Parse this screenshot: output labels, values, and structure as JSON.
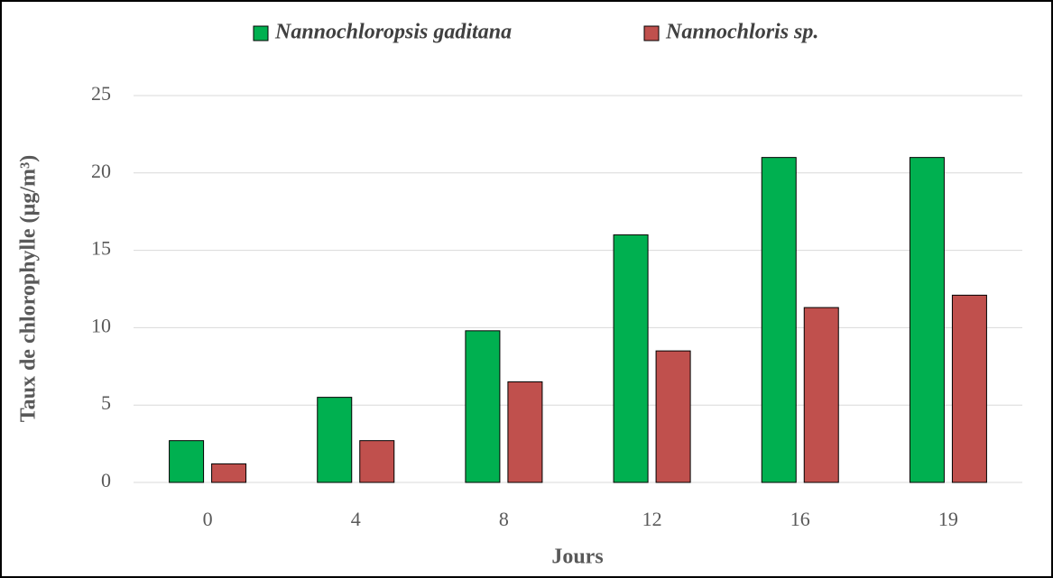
{
  "chart_data": {
    "type": "bar",
    "xlabel": "Jours",
    "ylabel": "Taux de chlorophylle (µg/m³)",
    "categories": [
      "0",
      "4",
      "8",
      "12",
      "16",
      "19"
    ],
    "series": [
      {
        "name": "Nannochloropsis gaditana",
        "color": "#00b050",
        "values": [
          2.7,
          5.5,
          9.8,
          16.0,
          21.0,
          21.0
        ]
      },
      {
        "name": "Nannochloris sp.",
        "color": "#c0504d",
        "values": [
          1.2,
          2.7,
          6.5,
          8.5,
          11.3,
          12.1
        ]
      }
    ],
    "ylim": [
      0,
      25
    ],
    "yticks": [
      0,
      5,
      10,
      15,
      20,
      25
    ],
    "grid": true,
    "legend": "top"
  }
}
